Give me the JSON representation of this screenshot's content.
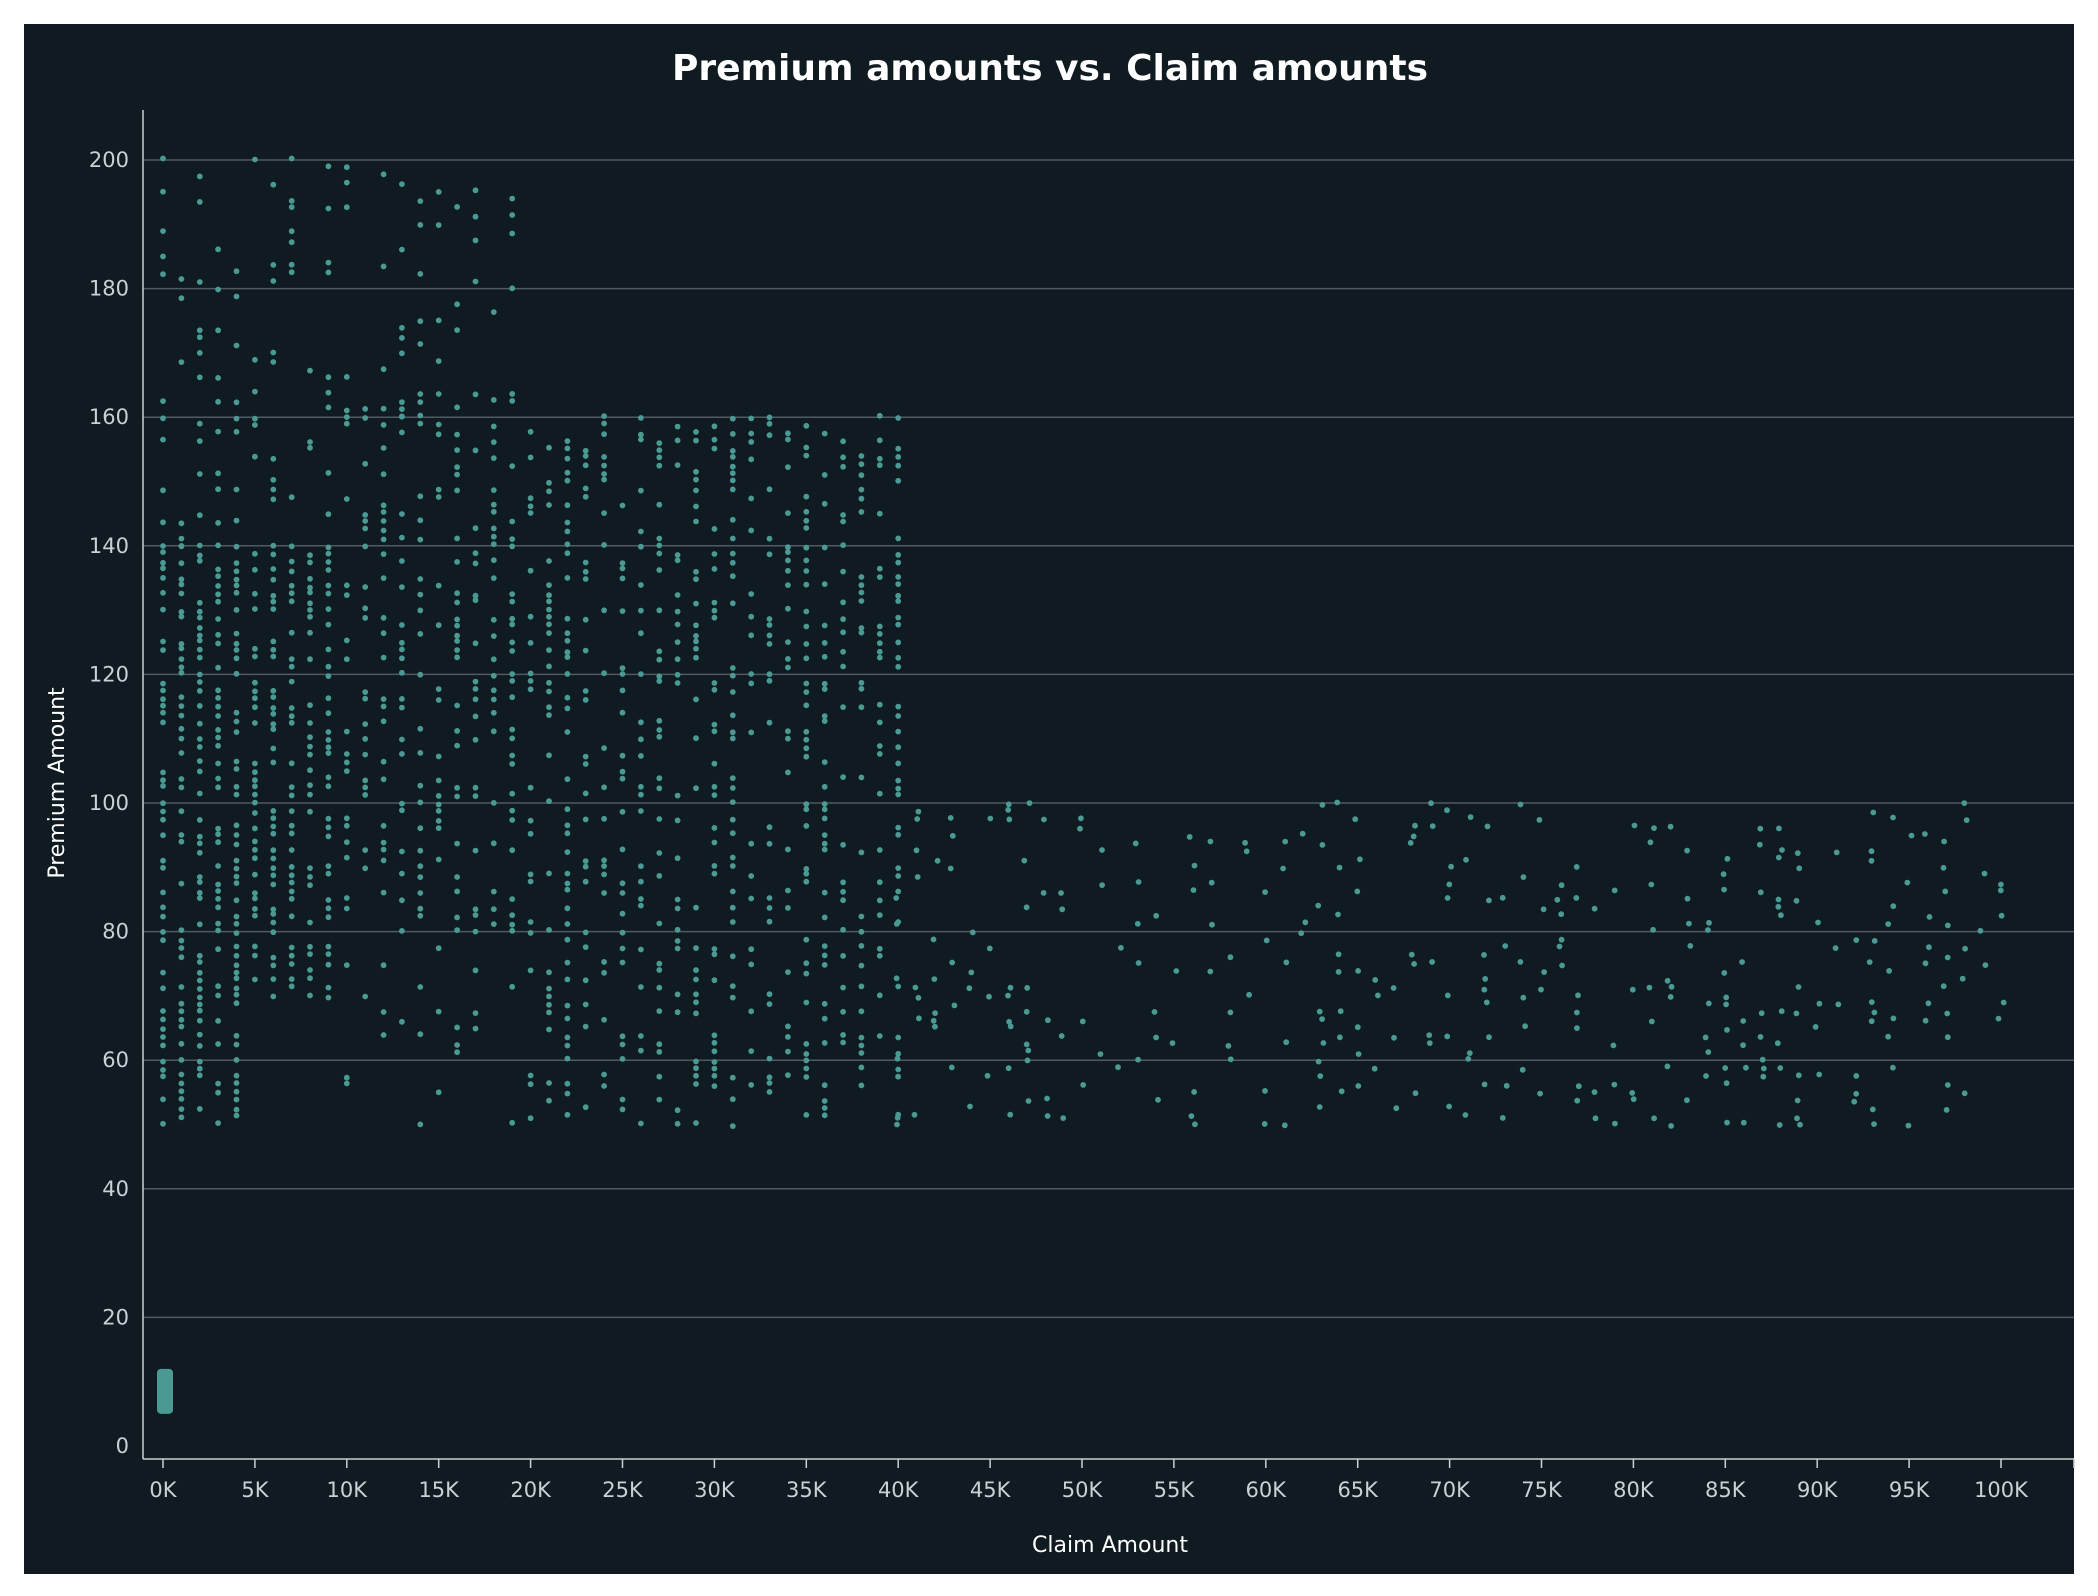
{
  "chart_data": {
    "type": "scatter",
    "title": "Premium amounts vs. Claim amounts",
    "xlabel": "Claim Amount",
    "ylabel": "Premium Amount",
    "xlim": [
      -1000,
      105000
    ],
    "ylim": [
      -2,
      210
    ],
    "x_ticks": [
      {
        "value": 0,
        "label": "0K"
      },
      {
        "value": 5000,
        "label": "5K"
      },
      {
        "value": 10000,
        "label": "10K"
      },
      {
        "value": 15000,
        "label": "15K"
      },
      {
        "value": 20000,
        "label": "20K"
      },
      {
        "value": 25000,
        "label": "25K"
      },
      {
        "value": 30000,
        "label": "30K"
      },
      {
        "value": 35000,
        "label": "35K"
      },
      {
        "value": 40000,
        "label": "40K"
      },
      {
        "value": 45000,
        "label": "45K"
      },
      {
        "value": 50000,
        "label": "50K"
      },
      {
        "value": 55000,
        "label": "55K"
      },
      {
        "value": 60000,
        "label": "60K"
      },
      {
        "value": 65000,
        "label": "65K"
      },
      {
        "value": 70000,
        "label": "70K"
      },
      {
        "value": 75000,
        "label": "75K"
      },
      {
        "value": 80000,
        "label": "80K"
      },
      {
        "value": 85000,
        "label": "85K"
      },
      {
        "value": 90000,
        "label": "90K"
      },
      {
        "value": 95000,
        "label": "95K"
      },
      {
        "value": 100000,
        "label": "100K"
      }
    ],
    "y_ticks": [
      {
        "value": 0,
        "label": "0"
      },
      {
        "value": 20,
        "label": "20"
      },
      {
        "value": 40,
        "label": "40"
      },
      {
        "value": 60,
        "label": "60"
      },
      {
        "value": 80,
        "label": "80"
      },
      {
        "value": 100,
        "label": "100"
      },
      {
        "value": 120,
        "label": "120"
      },
      {
        "value": 140,
        "label": "140"
      },
      {
        "value": 160,
        "label": "160"
      },
      {
        "value": 180,
        "label": "180"
      },
      {
        "value": 200,
        "label": "200"
      }
    ],
    "grid": true,
    "series": [
      {
        "color": "#4a9a93",
        "clusters": [
          {
            "x": [
              0,
              800
            ],
            "y": [
              5,
              12
            ],
            "pattern": "dense"
          },
          {
            "x": [
              0,
              5000
            ],
            "y": [
              50,
              140
            ],
            "pattern": "dense"
          },
          {
            "x": [
              0,
              5000
            ],
            "y": [
              140,
              200
            ],
            "pattern": "sparse"
          },
          {
            "x": [
              5000,
              10000
            ],
            "y": [
              70,
              140
            ],
            "pattern": "dense"
          },
          {
            "x": [
              5000,
              10000
            ],
            "y": [
              140,
              200
            ],
            "pattern": "sparse"
          },
          {
            "x": [
              10000,
              20000
            ],
            "y": [
              80,
              160
            ],
            "pattern": "medium"
          },
          {
            "x": [
              10000,
              20000
            ],
            "y": [
              160,
              200
            ],
            "pattern": "sparse"
          },
          {
            "x": [
              10000,
              20000
            ],
            "y": [
              50,
              80
            ],
            "pattern": "sparse"
          },
          {
            "x": [
              20000,
              40000
            ],
            "y": [
              50,
              160
            ],
            "pattern": "medium"
          },
          {
            "x": [
              40000,
              100000
            ],
            "y": [
              50,
              100
            ],
            "pattern": "sparse"
          }
        ]
      }
    ]
  }
}
